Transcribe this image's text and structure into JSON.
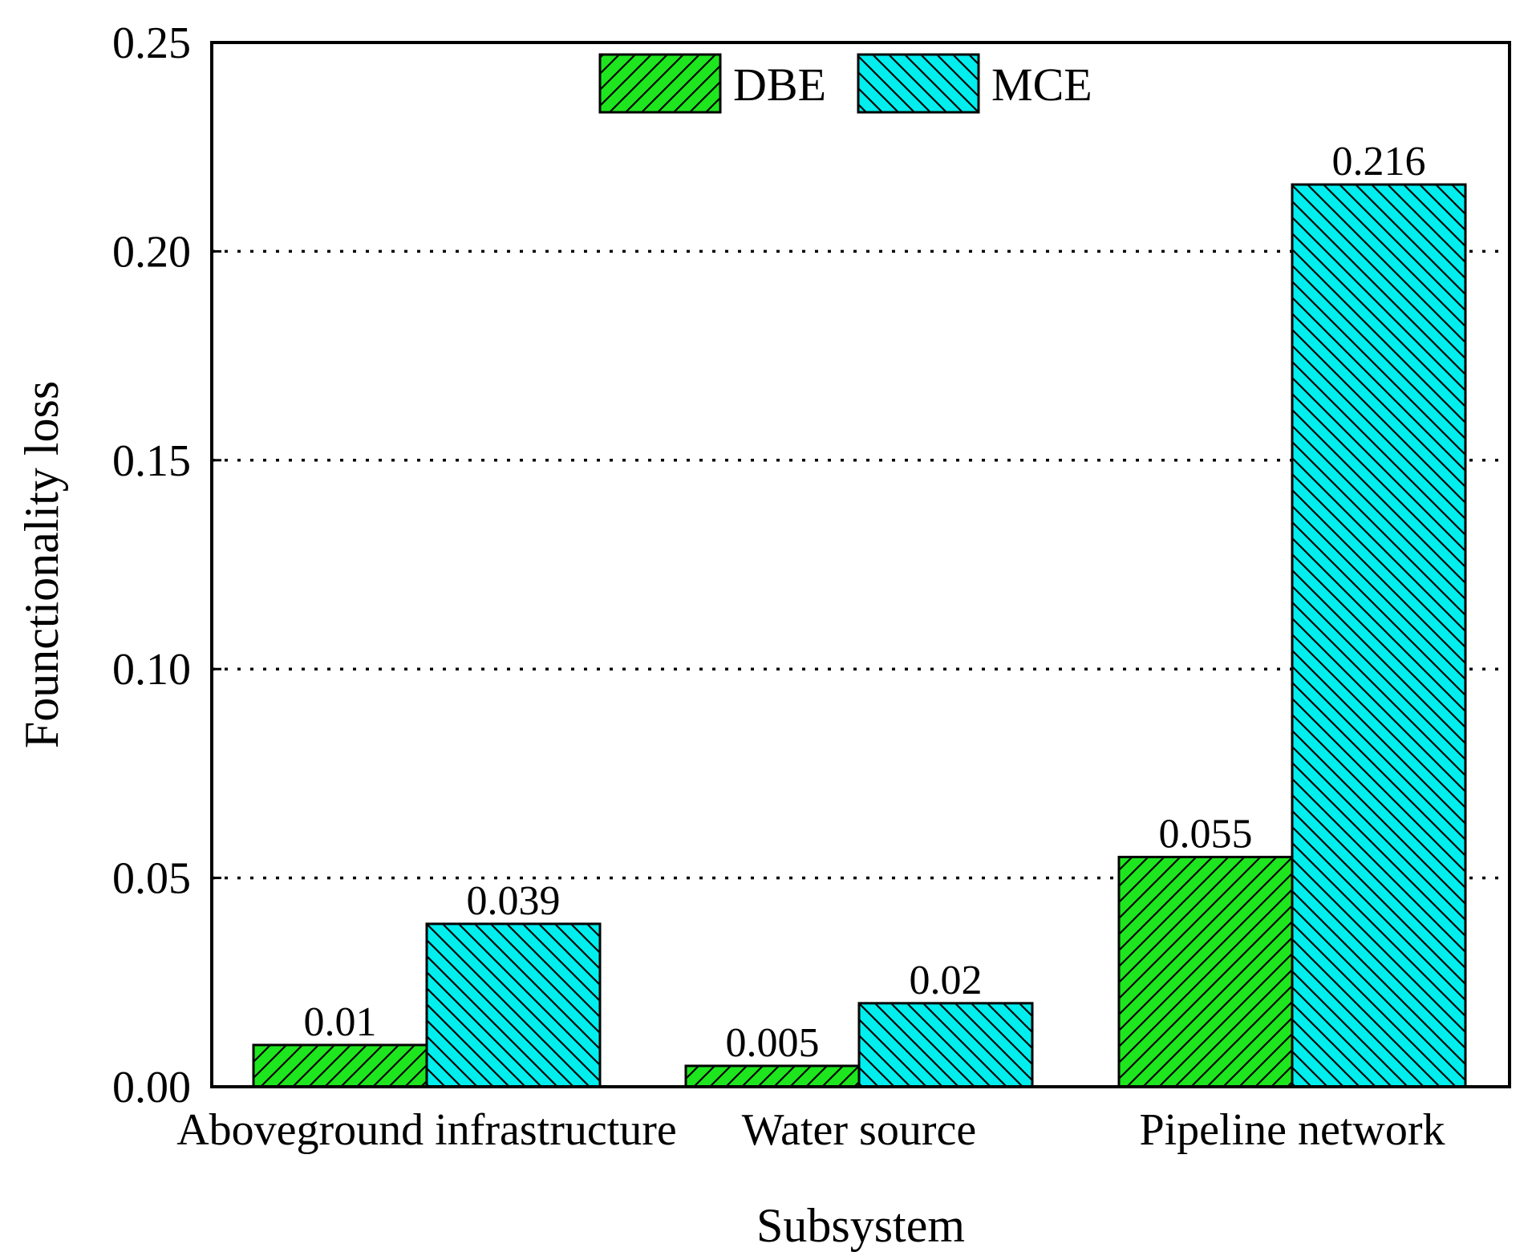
{
  "chart_data": {
    "type": "bar",
    "title": "",
    "xlabel": "Subsystem",
    "ylabel": "Founctionality loss",
    "categories": [
      "Aboveground infrastructure",
      "Water source",
      "Pipeline network"
    ],
    "series": [
      {
        "name": "DBE",
        "values": [
          0.01,
          0.005,
          0.055
        ],
        "labels": [
          "0.01",
          "0.005",
          "0.055"
        ],
        "color": "#1ee61e",
        "hatch": "forward-diagonal"
      },
      {
        "name": "MCE",
        "values": [
          0.039,
          0.02,
          0.216
        ],
        "labels": [
          "0.039",
          "0.02",
          "0.216"
        ],
        "color": "#00eeee",
        "hatch": "back-diagonal"
      }
    ],
    "ylim": [
      0,
      0.25
    ],
    "yticks": [
      0,
      0.05,
      0.1,
      0.15,
      0.2,
      0.25
    ],
    "ytick_labels": [
      "0.00",
      "0.05",
      "0.10",
      "0.15",
      "0.20",
      "0.25"
    ],
    "grid": "horizontal-dotted",
    "legend_position": "top-center"
  }
}
